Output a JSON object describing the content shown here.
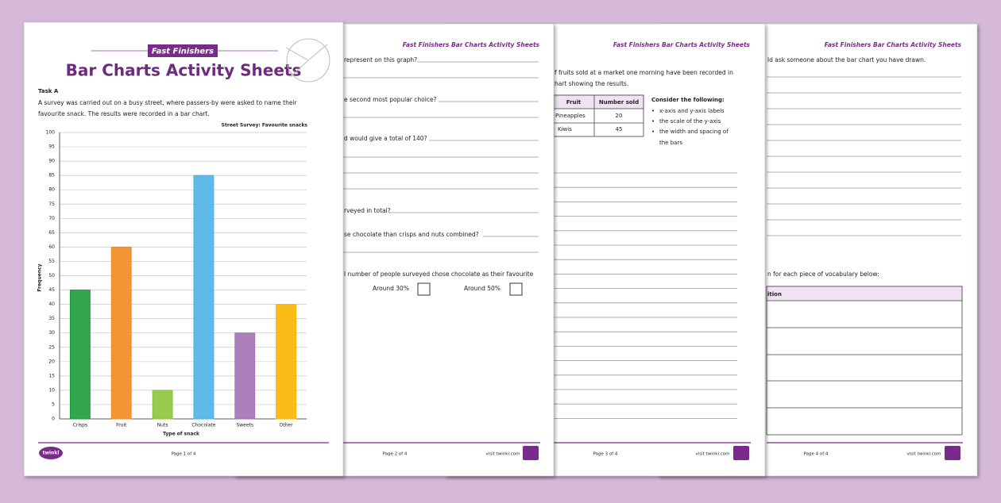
{
  "chart_data": {
    "type": "bar",
    "title": "Street Survey: Favourite snacks",
    "x_label": "Type of snack",
    "y_label": "Frequency",
    "categories": [
      "Crisps",
      "Fruit",
      "Nuts",
      "Chocolate",
      "Sweets",
      "Other"
    ],
    "values": [
      45,
      60,
      10,
      85,
      30,
      40
    ],
    "colors": [
      "#1e9a3c",
      "#f28a1f",
      "#8cc43c",
      "#4db3e6",
      "#a472b4",
      "#fbb400"
    ],
    "ylim": [
      0,
      100
    ],
    "yticks": [
      0,
      5,
      10,
      15,
      20,
      25,
      30,
      35,
      40,
      45,
      50,
      55,
      60,
      65,
      70,
      75,
      80,
      85,
      90,
      95,
      100
    ],
    "grid": true
  },
  "page1": {
    "badge": "Fast Finishers",
    "title": "Bar Charts Activity Sheets",
    "task": "Task A",
    "intro": [
      "A survey was carried out on a busy street, where passers-by were asked to name their",
      "favourite snack. The results were recorded in a bar chart."
    ],
    "logo": "twinkl",
    "page": "Page 1 of 4"
  },
  "page2": {
    "header": "Fast Finishers Bar Charts Activity Sheets",
    "questions": [
      "represent on this graph?",
      "e second most popular choice?",
      "d would give a total of 140?",
      "rveyed in total?",
      "se chocolate than crisps and nuts combined?",
      "l number of people surveyed chose chocolate as their favourite"
    ],
    "options": [
      "Around 30%",
      "Around 50%"
    ],
    "page": "Page 2 of 4",
    "site": "visit twinkl.com"
  },
  "page3": {
    "header": "Fast Finishers Bar Charts Activity Sheets",
    "intro": [
      "f fruits sold at a market one morning have been recorded in",
      "hart showing the results."
    ],
    "table": {
      "header": [
        "Fruit",
        "Number sold"
      ],
      "rows": [
        [
          "Pineapples",
          "20"
        ],
        [
          "Kiwis",
          "45"
        ]
      ]
    },
    "consider": "Consider the following:",
    "bullets": [
      "x-axis and y-axis labels",
      "the scale of the y-axis",
      "the width and spacing of",
      "the bars"
    ],
    "page": "Page 3 of 4",
    "site": "visit twinkl.com"
  },
  "page4": {
    "header": "Fast Finishers Bar Charts Activity Sheets",
    "question": "ld ask someone about the bar chart you have drawn.",
    "instruction": "n for each piece of vocabulary below:",
    "table_header": "ition",
    "page": "Page 4 of 4",
    "site": "visit twinkl.com"
  }
}
